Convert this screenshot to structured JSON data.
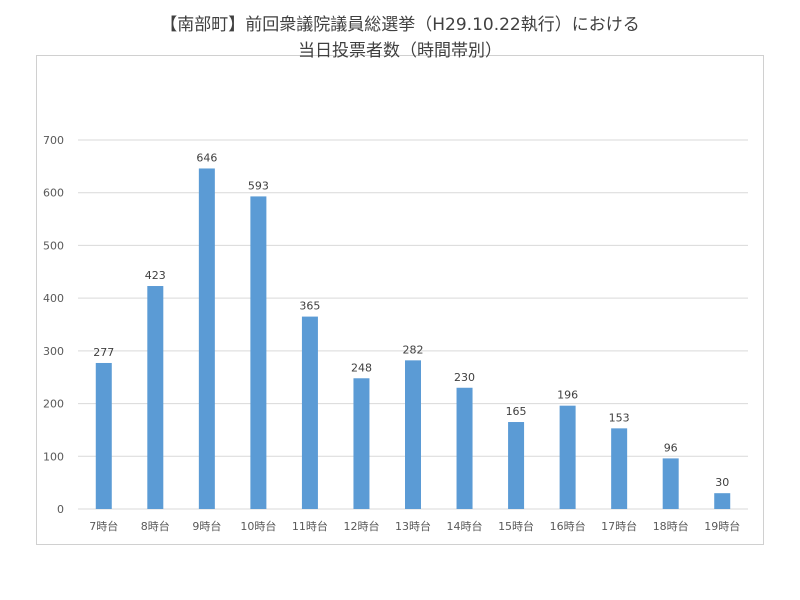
{
  "chart_data": {
    "type": "bar",
    "title_lines": [
      "【南部町】前回衆議院議員総選挙（H29.10.22執行）における",
      "当日投票者数（時間帯別）"
    ],
    "categories": [
      "7時台",
      "8時台",
      "9時台",
      "10時台",
      "11時台",
      "12時台",
      "13時台",
      "14時台",
      "15時台",
      "16時台",
      "17時台",
      "18時台",
      "19時台"
    ],
    "values": [
      277,
      423,
      646,
      593,
      365,
      248,
      282,
      230,
      165,
      196,
      153,
      96,
      30
    ],
    "ylim": [
      0,
      700
    ],
    "yticks": [
      "0",
      "100",
      "200",
      "300",
      "400",
      "500",
      "600",
      "700"
    ],
    "grid": true,
    "legend": "none",
    "bar_color": "#5b9bd5",
    "grid_color": "#d9d9d9"
  }
}
